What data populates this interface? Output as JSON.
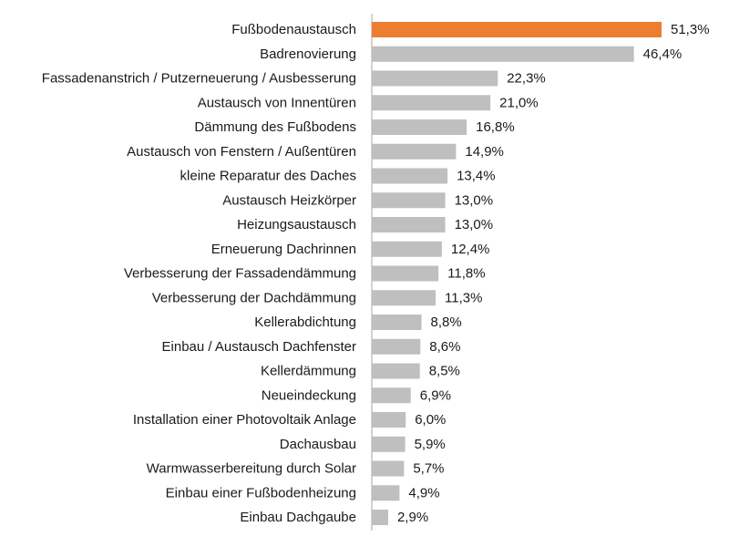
{
  "chart_data": {
    "type": "bar",
    "orientation": "horizontal",
    "title": "",
    "xlabel": "",
    "ylabel": "",
    "grid": false,
    "legend": "none",
    "xlim": [
      0,
      51.3
    ],
    "categories": [
      "Fußbodenaustausch",
      "Badrenovierung",
      "Fassadenanstrich / Putzerneuerung / Ausbesserung",
      "Austausch von Innentüren",
      "Dämmung des Fußbodens",
      "Austausch von Fenstern / Außentüren",
      "kleine Reparatur des Daches",
      "Austausch Heizkörper",
      "Heizungsaustausch",
      "Erneuerung Dachrinnen",
      "Verbesserung der Fassadendämmung",
      "Verbesserung der Dachdämmung",
      "Kellerabdichtung",
      "Einbau / Austausch Dachfenster",
      "Kellerdämmung",
      "Neueindeckung",
      "Installation einer Photovoltaik Anlage",
      "Dachausbau",
      "Warmwasserbereitung durch Solar",
      "Einbau einer Fußbodenheizung",
      "Einbau Dachgaube"
    ],
    "values": [
      51.3,
      46.4,
      22.3,
      21.0,
      16.8,
      14.9,
      13.4,
      13.0,
      13.0,
      12.4,
      11.8,
      11.3,
      8.8,
      8.6,
      8.5,
      6.9,
      6.0,
      5.9,
      5.7,
      4.9,
      2.9
    ],
    "value_labels": [
      "51,3%",
      "46,4%",
      "22,3%",
      "21,0%",
      "16,8%",
      "14,9%",
      "13,4%",
      "13,0%",
      "13,0%",
      "12,4%",
      "11,8%",
      "11,3%",
      "8,8%",
      "8,6%",
      "8,5%",
      "6,9%",
      "6,0%",
      "5,9%",
      "5,7%",
      "4,9%",
      "2,9%"
    ],
    "highlight_index": 0,
    "colors": {
      "highlight": "#ED7D31",
      "bar": "#BFBFBF",
      "axis": "#A6A6A6",
      "text": "#1A1A1A"
    }
  }
}
